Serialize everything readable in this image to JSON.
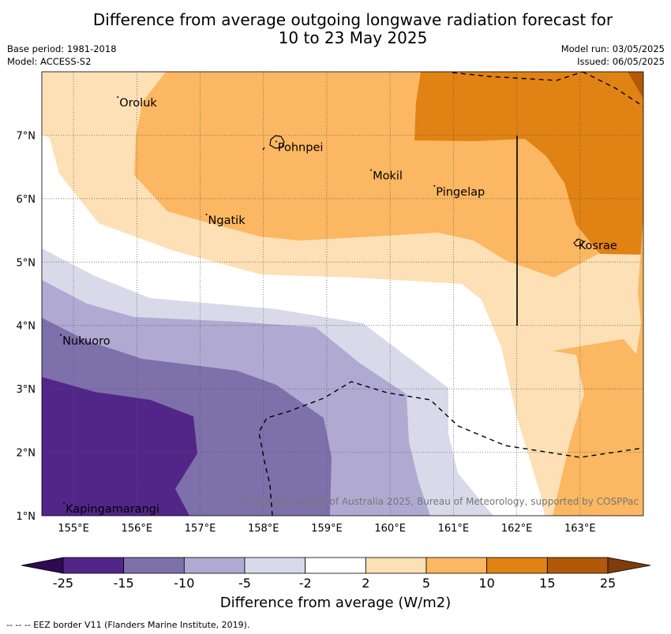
{
  "title": {
    "line1": "Difference from average outgoing longwave radiation forecast for",
    "line2": "10 to 23 May 2025"
  },
  "meta": {
    "base_period": "Base period: 1981-2018",
    "model": "Model: ACCESS-S2",
    "model_run": "Model run: 03/05/2025",
    "issued": "Issued: 06/05/2025"
  },
  "map": {
    "lon_range": [
      154.5,
      164.0
    ],
    "lat_range": [
      1.0,
      8.0
    ],
    "lon_ticks": [
      "155°E",
      "156°E",
      "157°E",
      "158°E",
      "159°E",
      "160°E",
      "161°E",
      "162°E",
      "163°E"
    ],
    "lat_ticks": [
      "1°N",
      "2°N",
      "3°N",
      "4°N",
      "5°N",
      "6°N",
      "7°N"
    ],
    "places": [
      {
        "name": "Oroluk",
        "lon": 155.7,
        "lat": 7.6
      },
      {
        "name": "Pohnpei",
        "lon": 158.2,
        "lat": 6.9
      },
      {
        "name": "Mokil",
        "lon": 159.7,
        "lat": 6.45
      },
      {
        "name": "Pingelap",
        "lon": 160.7,
        "lat": 6.2
      },
      {
        "name": "Ngatik",
        "lon": 157.1,
        "lat": 5.75
      },
      {
        "name": "Kosrae",
        "lon": 162.95,
        "lat": 5.35
      },
      {
        "name": "Nukuoro",
        "lon": 154.8,
        "lat": 3.85
      },
      {
        "name": "Kapingamarangi",
        "lon": 154.85,
        "lat": 1.2
      }
    ],
    "copyright": "© Commonwealth of Australia 2025, Bureau of Meteorology, supported by COSPPac"
  },
  "colorbar": {
    "title": "Difference from average (W/m2)",
    "ticks": [
      "-25",
      "-15",
      "-10",
      "-5",
      "-2",
      "2",
      "5",
      "10",
      "15",
      "25"
    ],
    "colors": {
      "below": "#2d0a52",
      "bins": [
        "#522689",
        "#7e70aa",
        "#b0aad2",
        "#d9d9ea",
        "#ffffff",
        "#fde0b5",
        "#fbb761",
        "#e08214",
        "#b15906"
      ],
      "above": "#7f3b08"
    }
  },
  "footnote": "--  --  -- EEZ border V11 (Flanders Marine Institute, 2019)."
}
